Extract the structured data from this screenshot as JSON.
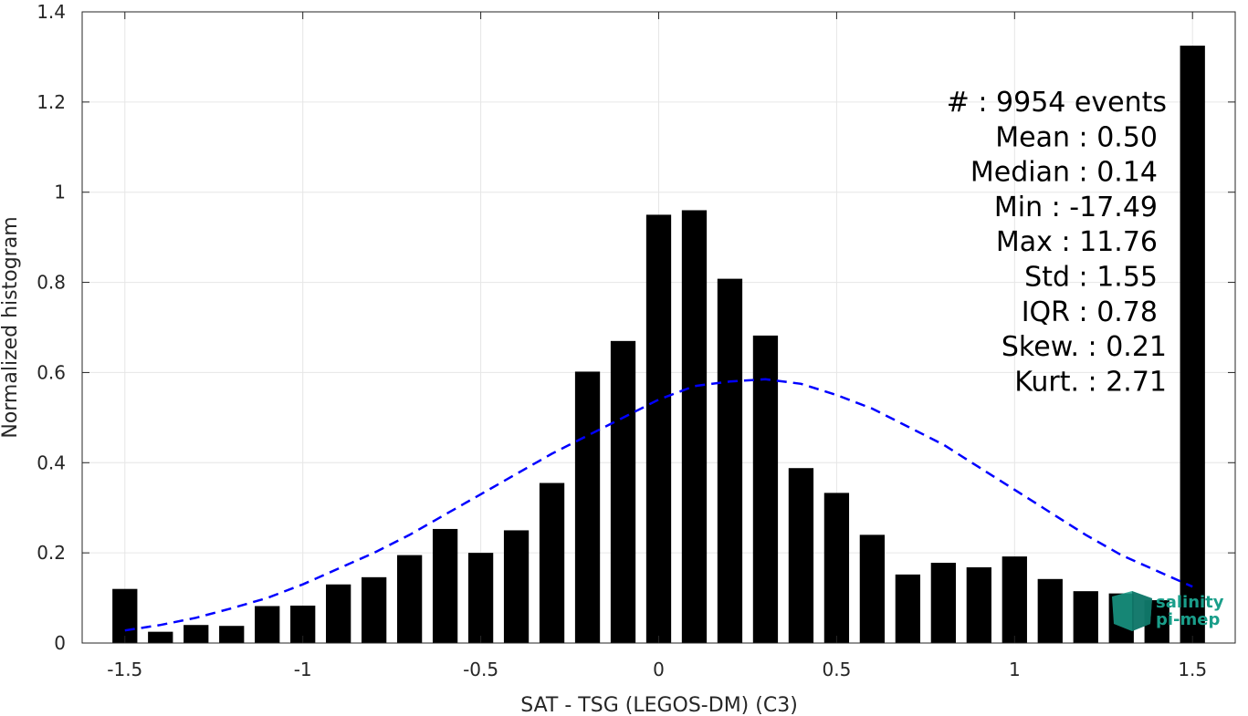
{
  "chart_data": {
    "type": "bar",
    "xlabel": "SAT - TSG (LEGOS-DM) (C3)",
    "ylabel": "Normalized histogram",
    "xlim": [
      -1.62,
      1.62
    ],
    "ylim": [
      0,
      1.4
    ],
    "xticks": [
      -1.5,
      -1,
      -0.5,
      0,
      0.5,
      1,
      1.5
    ],
    "xtick_labels": [
      "-1.5",
      "-1",
      "-0.5",
      "0",
      "0.5",
      "1",
      "1.5"
    ],
    "yticks": [
      0,
      0.2,
      0.4,
      0.6,
      0.8,
      1,
      1.2,
      1.4
    ],
    "ytick_labels": [
      "0",
      "0.2",
      "0.4",
      "0.6",
      "0.8",
      "1",
      "1.2",
      "1.4"
    ],
    "grid": true,
    "bar_width": 0.07,
    "x": [
      -1.5,
      -1.4,
      -1.3,
      -1.2,
      -1.1,
      -1.0,
      -0.9,
      -0.8,
      -0.7,
      -0.6,
      -0.5,
      -0.4,
      -0.3,
      -0.2,
      -0.1,
      0.0,
      0.1,
      0.2,
      0.3,
      0.4,
      0.5,
      0.6,
      0.7,
      0.8,
      0.9,
      1.0,
      1.1,
      1.2,
      1.3,
      1.4,
      1.5
    ],
    "values": [
      0.12,
      0.025,
      0.04,
      0.038,
      0.082,
      0.083,
      0.13,
      0.146,
      0.195,
      0.253,
      0.2,
      0.25,
      0.355,
      0.602,
      0.67,
      0.95,
      0.96,
      0.808,
      0.682,
      0.388,
      0.333,
      0.24,
      0.152,
      0.178,
      0.168,
      0.192,
      0.142,
      0.115,
      0.11,
      0.095,
      1.325
    ],
    "bar_color": "#000000",
    "fit_curve": {
      "style": "dashed",
      "color": "#0000ff",
      "x": [
        -1.5,
        -1.4,
        -1.3,
        -1.2,
        -1.1,
        -1.0,
        -0.9,
        -0.8,
        -0.7,
        -0.6,
        -0.5,
        -0.4,
        -0.3,
        -0.2,
        -0.1,
        0.0,
        0.1,
        0.2,
        0.3,
        0.4,
        0.5,
        0.6,
        0.7,
        0.8,
        0.9,
        1.0,
        1.1,
        1.2,
        1.3,
        1.4,
        1.5
      ],
      "y": [
        0.028,
        0.04,
        0.056,
        0.077,
        0.1,
        0.13,
        0.165,
        0.2,
        0.24,
        0.285,
        0.33,
        0.375,
        0.42,
        0.46,
        0.5,
        0.54,
        0.57,
        0.58,
        0.585,
        0.575,
        0.55,
        0.52,
        0.48,
        0.44,
        0.39,
        0.34,
        0.29,
        0.24,
        0.195,
        0.16,
        0.125
      ]
    },
    "stats": [
      {
        "label": "#  : 9954 events"
      },
      {
        "label": "Mean : 0.50"
      },
      {
        "label": "Median : 0.14"
      },
      {
        "label": "Min : -17.49"
      },
      {
        "label": "Max : 11.76"
      },
      {
        "label": "Std : 1.55"
      },
      {
        "label": "IQR : 0.78"
      },
      {
        "label": "Skew. : 0.21"
      },
      {
        "label": "Kurt. : 2.71"
      }
    ]
  },
  "logo": {
    "line1": "salinity",
    "line2": "pi-mep",
    "color": "#1a9e8a"
  }
}
